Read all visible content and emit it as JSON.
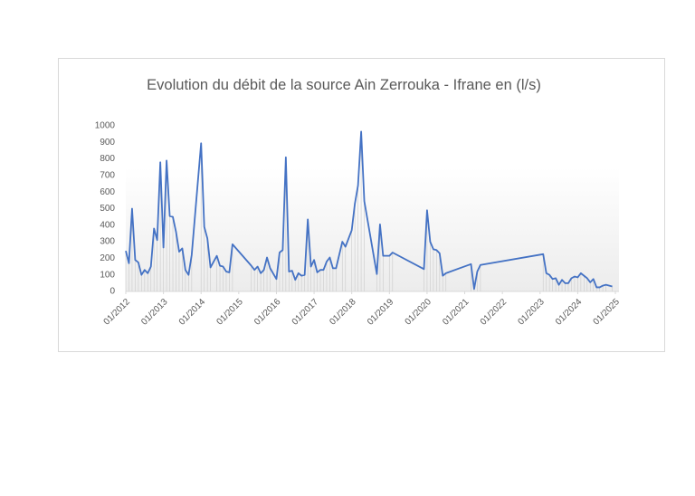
{
  "chart_data": {
    "type": "line",
    "title": "Evolution du débit de la source Ain Zerrouka - Ifrane en (l/s)",
    "color": "#4472c4",
    "x": [
      "2012-01",
      "2012-02",
      "2012-03",
      "2012-04",
      "2012-05",
      "2012-06",
      "2012-07",
      "2012-08",
      "2012-09",
      "2012-10",
      "2012-11",
      "2012-12",
      "2013-01",
      "2013-02",
      "2013-03",
      "2013-04",
      "2013-05",
      "2013-06",
      "2013-07",
      "2013-08",
      "2013-09",
      "2013-10",
      "2014-01",
      "2014-02",
      "2014-03",
      "2014-04",
      "2014-06",
      "2014-07",
      "2014-08",
      "2014-09",
      "2014-10",
      "2014-11",
      "2015-05",
      "2015-06",
      "2015-07",
      "2015-08",
      "2015-09",
      "2015-10",
      "2015-11",
      "2016-01",
      "2016-02",
      "2016-03",
      "2016-04",
      "2016-05",
      "2016-06",
      "2016-07",
      "2016-08",
      "2016-09",
      "2016-10",
      "2016-11",
      "2016-12",
      "2017-01",
      "2017-02",
      "2017-03",
      "2017-04",
      "2017-05",
      "2017-06",
      "2017-07",
      "2017-08",
      "2017-10",
      "2017-11",
      "2018-01",
      "2018-02",
      "2018-03",
      "2018-04",
      "2018-05",
      "2018-09",
      "2018-10",
      "2018-11",
      "2019-01",
      "2019-02",
      "2019-12",
      "2020-01",
      "2020-02",
      "2020-03",
      "2020-04",
      "2020-05",
      "2020-06",
      "2020-07",
      "2021-03",
      "2021-04",
      "2021-05",
      "2021-06",
      "2023-02",
      "2023-03",
      "2023-04",
      "2023-05",
      "2023-06",
      "2023-07",
      "2023-08",
      "2023-09",
      "2023-10",
      "2023-11",
      "2023-12",
      "2024-01",
      "2024-02",
      "2024-03",
      "2024-04",
      "2024-05",
      "2024-06",
      "2024-07",
      "2024-08",
      "2024-09",
      "2024-10",
      "2024-12"
    ],
    "values": [
      245,
      170,
      500,
      190,
      175,
      100,
      130,
      110,
      150,
      380,
      310,
      780,
      265,
      790,
      455,
      450,
      360,
      240,
      260,
      130,
      100,
      220,
      895,
      390,
      320,
      145,
      215,
      155,
      150,
      120,
      115,
      285,
      155,
      130,
      150,
      110,
      130,
      205,
      140,
      75,
      235,
      250,
      810,
      120,
      125,
      70,
      110,
      95,
      100,
      435,
      150,
      190,
      115,
      130,
      130,
      180,
      205,
      140,
      140,
      300,
      270,
      370,
      530,
      640,
      965,
      545,
      105,
      405,
      215,
      215,
      235,
      135,
      490,
      300,
      255,
      250,
      230,
      95,
      110,
      165,
      15,
      120,
      160,
      225,
      110,
      100,
      75,
      80,
      40,
      70,
      50,
      50,
      80,
      90,
      85,
      110,
      95,
      80,
      55,
      75,
      25,
      25,
      35,
      40,
      30
    ],
    "xlim": [
      "2012-01",
      "2025-01"
    ],
    "xticks": [
      {
        "value": "2012-01",
        "label": "01/2012"
      },
      {
        "value": "2013-01",
        "label": "01/2013"
      },
      {
        "value": "2014-01",
        "label": "01/2014"
      },
      {
        "value": "2015-01",
        "label": "01/2015"
      },
      {
        "value": "2016-01",
        "label": "01/2016"
      },
      {
        "value": "2017-01",
        "label": "01/2017"
      },
      {
        "value": "2018-01",
        "label": "01/2018"
      },
      {
        "value": "2019-01",
        "label": "01/2019"
      },
      {
        "value": "2020-01",
        "label": "01/2020"
      },
      {
        "value": "2021-01",
        "label": "01/2021"
      },
      {
        "value": "2022-01",
        "label": "01/2022"
      },
      {
        "value": "2023-01",
        "label": "01/2023"
      },
      {
        "value": "2024-01",
        "label": "01/2024"
      },
      {
        "value": "2025-01",
        "label": "01/2025"
      }
    ],
    "ylim": [
      0,
      1000
    ],
    "yticks": [
      0,
      100,
      200,
      300,
      400,
      500,
      600,
      700,
      800,
      900,
      1000
    ]
  }
}
